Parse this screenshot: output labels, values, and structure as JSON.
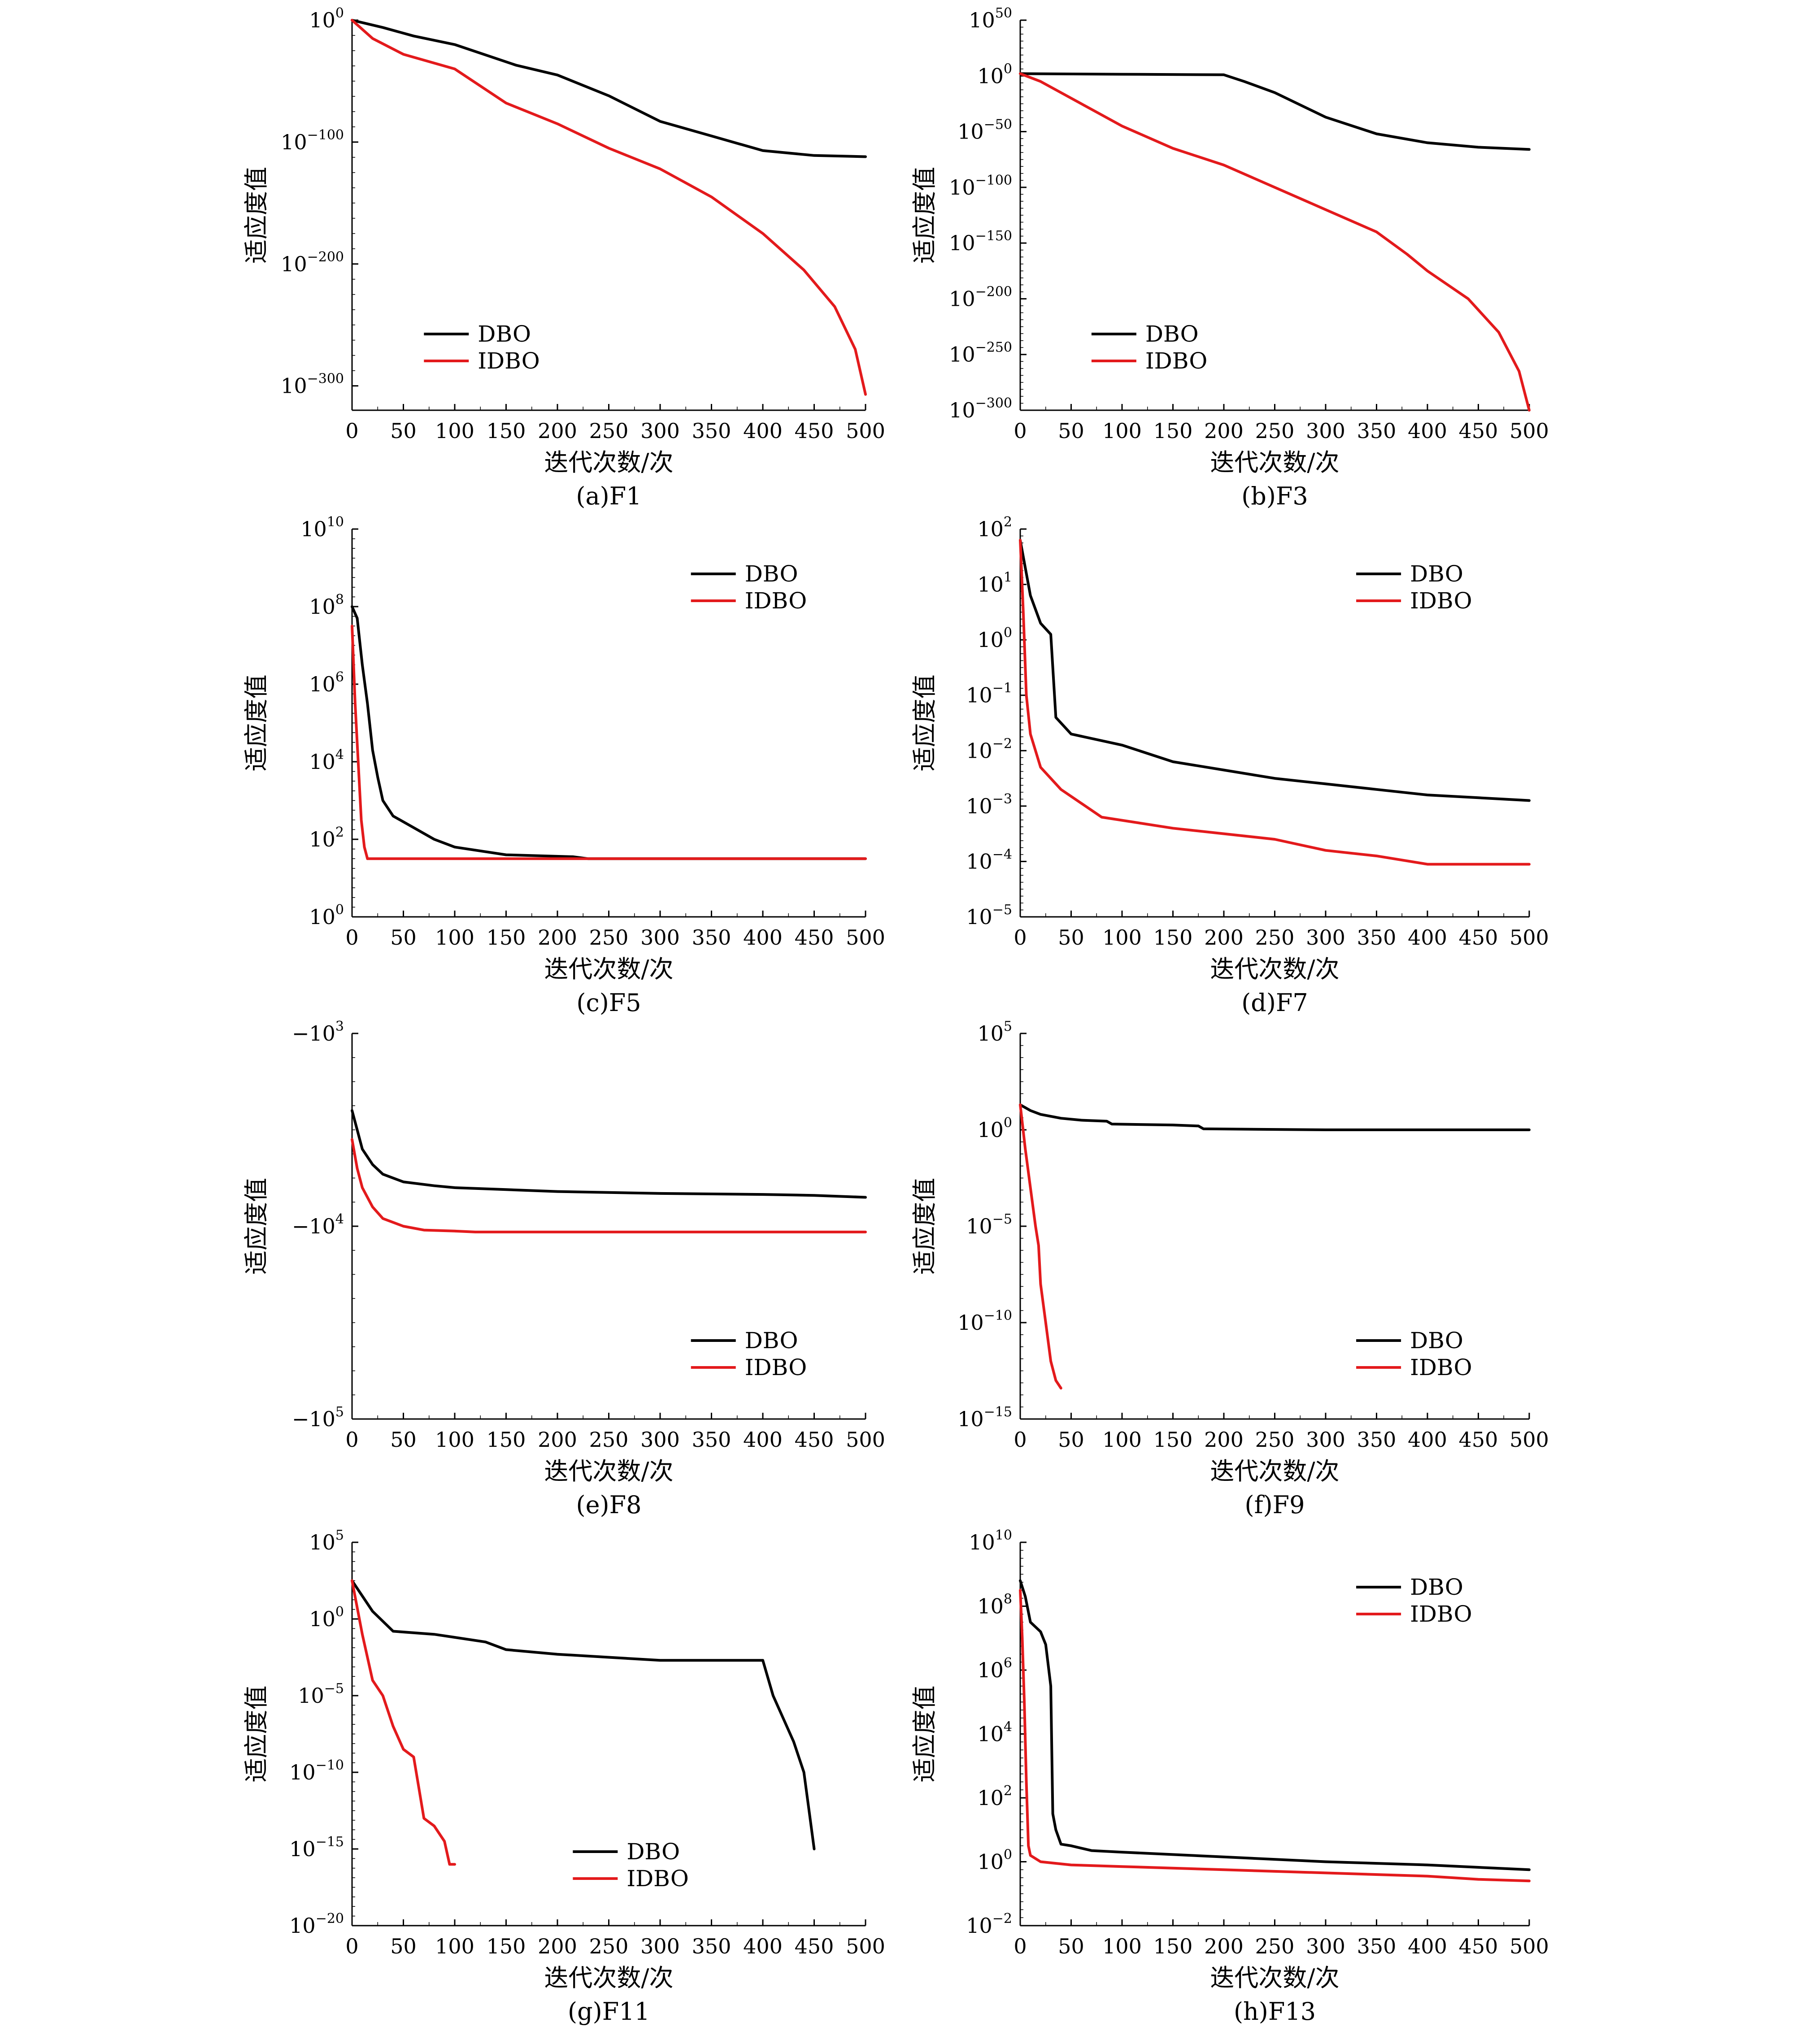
{
  "colors": {
    "DBO": "#000000",
    "IDBO": "#e31a1c"
  },
  "x_label": "迭代次数/次",
  "y_label": "适应度值",
  "x_ticks": [
    "0",
    "50",
    "100",
    "150",
    "200",
    "250",
    "300",
    "350",
    "400",
    "450",
    "500"
  ],
  "chart_data": [
    {
      "id": "F1",
      "caption": "(a)F1",
      "type": "line",
      "yscale": "log",
      "xlim": [
        0,
        500
      ],
      "ylim_exp": [
        -320,
        0
      ],
      "yticks": [
        {
          "base": "10",
          "exp": "0"
        },
        {
          "base": "10",
          "exp": "−100"
        },
        {
          "base": "10",
          "exp": "−200"
        },
        {
          "base": "10",
          "exp": "−300"
        }
      ],
      "legend": "bottom-left",
      "series": [
        {
          "name": "DBO",
          "x": [
            0,
            10,
            30,
            60,
            100,
            160,
            200,
            250,
            300,
            350,
            400,
            450,
            500
          ],
          "log10_y": [
            0,
            -2,
            -6,
            -13,
            -20,
            -37,
            -45,
            -62,
            -83,
            -95,
            -107,
            -111,
            -112
          ]
        },
        {
          "name": "IDBO",
          "x": [
            0,
            20,
            50,
            100,
            150,
            200,
            250,
            300,
            350,
            400,
            440,
            470,
            490,
            500
          ],
          "log10_y": [
            0,
            -15,
            -28,
            -40,
            -68,
            -85,
            -105,
            -122,
            -145,
            -175,
            -205,
            -235,
            -270,
            -307
          ]
        }
      ]
    },
    {
      "id": "F3",
      "caption": "(b)F3",
      "type": "line",
      "yscale": "log",
      "xlim": [
        0,
        500
      ],
      "ylim_exp": [
        -300,
        50
      ],
      "yticks": [
        {
          "base": "10",
          "exp": "50"
        },
        {
          "base": "10",
          "exp": "0"
        },
        {
          "base": "10",
          "exp": "−50"
        },
        {
          "base": "10",
          "exp": "−100"
        },
        {
          "base": "10",
          "exp": "−150"
        },
        {
          "base": "10",
          "exp": "−200"
        },
        {
          "base": "10",
          "exp": "−250"
        },
        {
          "base": "10",
          "exp": "−300"
        }
      ],
      "legend": "bottom-left",
      "series": [
        {
          "name": "DBO",
          "x": [
            0,
            100,
            200,
            220,
            250,
            300,
            350,
            400,
            450,
            500
          ],
          "log10_y": [
            2,
            1.5,
            1,
            -5,
            -15,
            -37,
            -52,
            -60,
            -64,
            -66
          ]
        },
        {
          "name": "IDBO",
          "x": [
            0,
            20,
            50,
            100,
            150,
            200,
            250,
            300,
            350,
            380,
            400,
            440,
            470,
            490,
            500
          ],
          "log10_y": [
            2,
            -5,
            -20,
            -45,
            -65,
            -80,
            -100,
            -120,
            -140,
            -160,
            -175,
            -200,
            -230,
            -265,
            -300
          ]
        }
      ]
    },
    {
      "id": "F5",
      "caption": "(c)F5",
      "type": "line",
      "yscale": "log",
      "xlim": [
        0,
        500
      ],
      "ylim_exp": [
        0,
        10
      ],
      "yticks": [
        {
          "base": "10",
          "exp": "10"
        },
        {
          "base": "10",
          "exp": "8"
        },
        {
          "base": "10",
          "exp": "6"
        },
        {
          "base": "10",
          "exp": "4"
        },
        {
          "base": "10",
          "exp": "2"
        },
        {
          "base": "10",
          "exp": "0"
        }
      ],
      "legend": "top-right",
      "series": [
        {
          "name": "DBO",
          "x": [
            0,
            5,
            10,
            15,
            20,
            25,
            30,
            40,
            60,
            80,
            100,
            150,
            215,
            230,
            500
          ],
          "log10_y": [
            8.0,
            7.7,
            6.5,
            5.5,
            4.3,
            3.6,
            3.0,
            2.6,
            2.3,
            2.0,
            1.8,
            1.6,
            1.55,
            1.5,
            1.5
          ]
        },
        {
          "name": "IDBO",
          "x": [
            0,
            3,
            6,
            9,
            12,
            15,
            500
          ],
          "log10_y": [
            7.5,
            5.5,
            4.0,
            2.5,
            1.8,
            1.5,
            1.5
          ]
        }
      ]
    },
    {
      "id": "F7",
      "caption": "(d)F7",
      "type": "line",
      "yscale": "log",
      "xlim": [
        0,
        500
      ],
      "ylim_exp": [
        -5,
        2
      ],
      "yticks": [
        {
          "base": "10",
          "exp": "2"
        },
        {
          "base": "10",
          "exp": "1"
        },
        {
          "base": "10",
          "exp": "0"
        },
        {
          "base": "10",
          "exp": "−1"
        },
        {
          "base": "10",
          "exp": "−2"
        },
        {
          "base": "10",
          "exp": "−3"
        },
        {
          "base": "10",
          "exp": "−4"
        },
        {
          "base": "10",
          "exp": "−5"
        }
      ],
      "legend": "top-right",
      "series": [
        {
          "name": "DBO",
          "x": [
            0,
            5,
            10,
            20,
            30,
            35,
            50,
            100,
            150,
            200,
            250,
            300,
            350,
            400,
            450,
            500
          ],
          "log10_y": [
            1.8,
            1.3,
            0.8,
            0.3,
            0.1,
            -1.4,
            -1.7,
            -1.9,
            -2.2,
            -2.35,
            -2.5,
            -2.6,
            -2.7,
            -2.8,
            -2.85,
            -2.9
          ]
        },
        {
          "name": "IDBO",
          "x": [
            0,
            3,
            6,
            10,
            20,
            40,
            80,
            150,
            200,
            250,
            300,
            350,
            400,
            450,
            500
          ],
          "log10_y": [
            1.8,
            0.5,
            -1.0,
            -1.7,
            -2.3,
            -2.7,
            -3.2,
            -3.4,
            -3.5,
            -3.6,
            -3.8,
            -3.9,
            -4.05,
            -4.05,
            -4.05
          ]
        }
      ]
    },
    {
      "id": "F8",
      "caption": "(e)F8",
      "type": "line",
      "yscale": "symlog-negative",
      "xlim": [
        0,
        500
      ],
      "ylim_log_abs": [
        3,
        5
      ],
      "yticks": [
        {
          "base": "−10",
          "exp": "3"
        },
        {
          "base": "−10",
          "exp": "4"
        },
        {
          "base": "−10",
          "exp": "5"
        }
      ],
      "legend": "bottom-right",
      "series": [
        {
          "name": "DBO",
          "x": [
            0,
            5,
            10,
            20,
            30,
            50,
            80,
            100,
            150,
            200,
            300,
            400,
            450,
            500
          ],
          "log10_abs_y": [
            3.4,
            3.5,
            3.6,
            3.68,
            3.73,
            3.77,
            3.79,
            3.8,
            3.81,
            3.82,
            3.83,
            3.835,
            3.84,
            3.85
          ]
        },
        {
          "name": "IDBO",
          "x": [
            0,
            5,
            10,
            20,
            30,
            50,
            70,
            100,
            120,
            500
          ],
          "log10_abs_y": [
            3.55,
            3.7,
            3.8,
            3.9,
            3.96,
            4.0,
            4.02,
            4.025,
            4.03,
            4.03
          ]
        }
      ]
    },
    {
      "id": "F9",
      "caption": "(f)F9",
      "type": "line",
      "yscale": "log",
      "xlim": [
        0,
        500
      ],
      "ylim_exp": [
        -15,
        5
      ],
      "yticks": [
        {
          "base": "10",
          "exp": "5"
        },
        {
          "base": "10",
          "exp": "0"
        },
        {
          "base": "10",
          "exp": "−5"
        },
        {
          "base": "10",
          "exp": "−10"
        },
        {
          "base": "10",
          "exp": "−15"
        }
      ],
      "legend": "bottom-right",
      "series": [
        {
          "name": "DBO",
          "x": [
            0,
            10,
            20,
            40,
            60,
            85,
            90,
            150,
            175,
            180,
            300,
            500
          ],
          "log10_y": [
            1.3,
            1.0,
            0.8,
            0.6,
            0.5,
            0.45,
            0.3,
            0.25,
            0.2,
            0.05,
            0.0,
            0.0
          ]
        },
        {
          "name": "IDBO",
          "x": [
            0,
            5,
            10,
            15,
            18,
            20,
            25,
            30,
            35,
            40
          ],
          "log10_y": [
            1.3,
            -1.0,
            -3.0,
            -5.0,
            -6.0,
            -8.0,
            -10.0,
            -12.0,
            -13.0,
            -13.4
          ]
        }
      ]
    },
    {
      "id": "F11",
      "caption": "(g)F11",
      "type": "line",
      "yscale": "log",
      "xlim": [
        0,
        500
      ],
      "ylim_exp": [
        -20,
        5
      ],
      "yticks": [
        {
          "base": "10",
          "exp": "5"
        },
        {
          "base": "10",
          "exp": "0"
        },
        {
          "base": "10",
          "exp": "−5"
        },
        {
          "base": "10",
          "exp": "−10"
        },
        {
          "base": "10",
          "exp": "−15"
        },
        {
          "base": "10",
          "exp": "−20"
        }
      ],
      "legend": "bottom-right",
      "series": [
        {
          "name": "DBO",
          "x": [
            0,
            10,
            20,
            40,
            80,
            100,
            130,
            150,
            200,
            250,
            300,
            350,
            400,
            410,
            420,
            430,
            440,
            445,
            450
          ],
          "log10_y": [
            2.5,
            1.5,
            0.5,
            -0.8,
            -1.0,
            -1.2,
            -1.5,
            -2.0,
            -2.3,
            -2.5,
            -2.7,
            -2.7,
            -2.7,
            -5.0,
            -6.5,
            -8.0,
            -10.0,
            -12.5,
            -15.0
          ]
        },
        {
          "name": "IDBO",
          "x": [
            0,
            10,
            20,
            30,
            40,
            50,
            60,
            65,
            70,
            80,
            90,
            95,
            100
          ],
          "log10_y": [
            2.5,
            -1.0,
            -4.0,
            -5.0,
            -7.0,
            -8.5,
            -9.0,
            -11.0,
            -13.0,
            -13.5,
            -14.5,
            -16.0,
            -16.0
          ]
        }
      ]
    },
    {
      "id": "F13",
      "caption": "(h)F13",
      "type": "line",
      "yscale": "log",
      "xlim": [
        0,
        500
      ],
      "ylim_exp": [
        -2,
        10
      ],
      "yticks": [
        {
          "base": "10",
          "exp": "10"
        },
        {
          "base": "10",
          "exp": "8"
        },
        {
          "base": "10",
          "exp": "6"
        },
        {
          "base": "10",
          "exp": "4"
        },
        {
          "base": "10",
          "exp": "2"
        },
        {
          "base": "10",
          "exp": "0"
        },
        {
          "base": "10",
          "exp": "−2"
        }
      ],
      "legend": "top-right",
      "series": [
        {
          "name": "DBO",
          "x": [
            0,
            5,
            10,
            20,
            25,
            30,
            32,
            35,
            40,
            50,
            70,
            100,
            200,
            300,
            400,
            500
          ],
          "log10_y": [
            8.8,
            8.3,
            7.5,
            7.2,
            6.8,
            5.5,
            1.5,
            1.0,
            0.55,
            0.5,
            0.35,
            0.3,
            0.15,
            0.0,
            -0.1,
            -0.25
          ]
        },
        {
          "name": "IDBO",
          "x": [
            0,
            2,
            4,
            6,
            8,
            10,
            20,
            50,
            100,
            200,
            300,
            400,
            450,
            500
          ],
          "log10_y": [
            8.5,
            7.0,
            5.0,
            2.5,
            0.5,
            0.2,
            0.0,
            -0.1,
            -0.15,
            -0.25,
            -0.35,
            -0.45,
            -0.55,
            -0.6
          ]
        }
      ]
    }
  ]
}
